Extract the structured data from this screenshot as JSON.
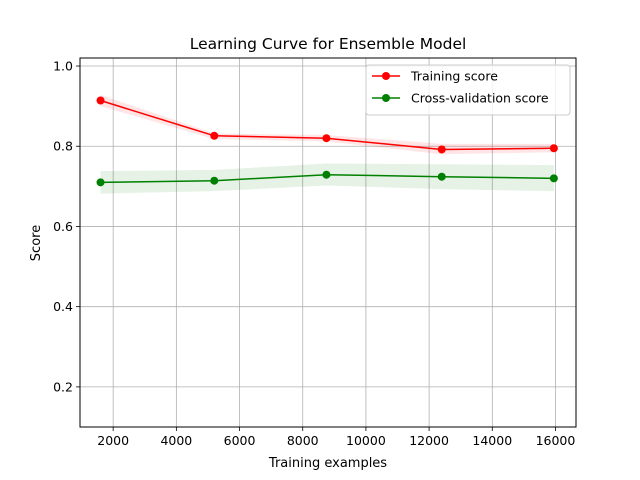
{
  "chart_data": {
    "type": "line",
    "title": "Learning Curve for Ensemble Model",
    "xlabel": "Training examples",
    "ylabel": "Score",
    "xlim": [
      950,
      16650
    ],
    "ylim": [
      0.1,
      1.02
    ],
    "xticks": [
      2000,
      4000,
      6000,
      8000,
      10000,
      12000,
      14000,
      16000
    ],
    "yticks": [
      0.2,
      0.4,
      0.6,
      0.8,
      1.0
    ],
    "xtick_labels": [
      "2000",
      "4000",
      "6000",
      "8000",
      "10000",
      "12000",
      "14000",
      "16000"
    ],
    "ytick_labels": [
      "0.2",
      "0.4",
      "0.6",
      "0.8",
      "1.0"
    ],
    "grid": true,
    "legend_position": "top-right",
    "x": [
      1600,
      5200,
      8750,
      12400,
      15950
    ],
    "series": [
      {
        "name": "Training score",
        "color": "#ff0000",
        "band_color": "#ff0000",
        "values": [
          0.914,
          0.826,
          0.82,
          0.792,
          0.795
        ],
        "band_upper": [
          0.928,
          0.832,
          0.828,
          0.806,
          0.806
        ],
        "band_lower": [
          0.9,
          0.818,
          0.812,
          0.78,
          0.785
        ]
      },
      {
        "name": "Cross-validation score",
        "color": "#008000",
        "band_color": "#008000",
        "values": [
          0.71,
          0.714,
          0.729,
          0.724,
          0.72
        ],
        "band_upper": [
          0.738,
          0.741,
          0.757,
          0.755,
          0.753
        ],
        "band_lower": [
          0.682,
          0.688,
          0.702,
          0.693,
          0.688
        ]
      }
    ]
  }
}
